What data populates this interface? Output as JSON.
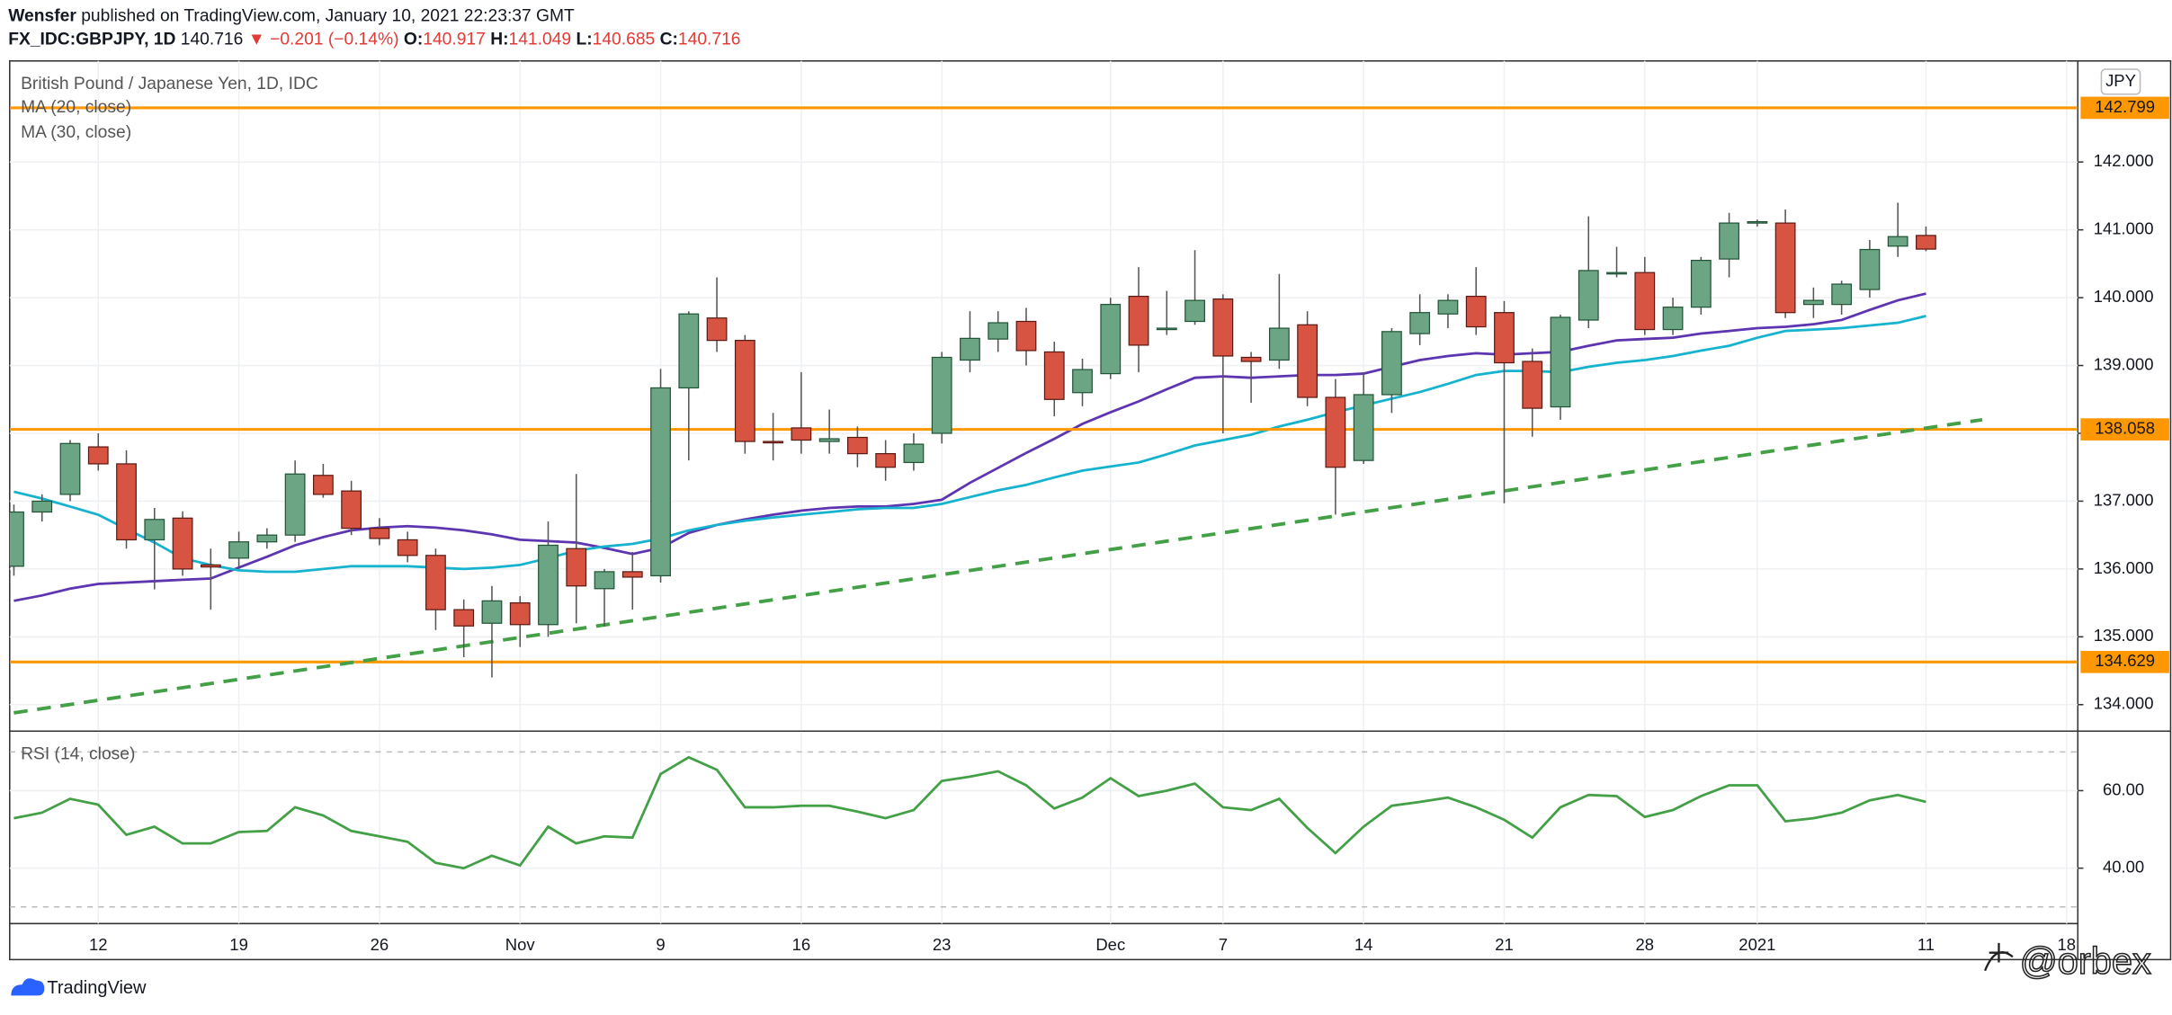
{
  "header": {
    "author": "Wensfer",
    "published": "published on TradingView.com, January 10, 2021 22:23:37 GMT",
    "symbol": "FX_IDC:GBPJPY, 1D",
    "last": "140.716",
    "change": "▼ −0.201 (−0.14%)",
    "ohlc": [
      {
        "label": "O:",
        "value": "140.917"
      },
      {
        "label": "H:",
        "value": "141.049"
      },
      {
        "label": "L:",
        "value": "140.685"
      },
      {
        "label": "C:",
        "value": "140.716"
      }
    ]
  },
  "chart_data": [
    {
      "type": "candlestick",
      "title": "British Pound / Japanese Yen, 1D, IDC",
      "currency": "JPY",
      "up_color": "#6ba583",
      "down_color": "#d75442",
      "xlim": [
        -0.15,
        73.4
      ],
      "xticks": [
        {
          "value": 3,
          "label": "12"
        },
        {
          "value": 8,
          "label": "19"
        },
        {
          "value": 13,
          "label": "26"
        },
        {
          "value": 18,
          "label": "Nov"
        },
        {
          "value": 23,
          "label": "9"
        },
        {
          "value": 28,
          "label": "16"
        },
        {
          "value": 33,
          "label": "23"
        },
        {
          "value": 39,
          "label": "Dec"
        },
        {
          "value": 43,
          "label": "7"
        },
        {
          "value": 48,
          "label": "14"
        },
        {
          "value": 53,
          "label": "21"
        },
        {
          "value": 58,
          "label": "28"
        },
        {
          "value": 62,
          "label": "2021"
        },
        {
          "value": 68,
          "label": "11"
        },
        {
          "value": 73,
          "label": "18"
        }
      ],
      "ylim": [
        133.63,
        143.49
      ],
      "yticks": [
        {
          "value": 134,
          "label": "134.000"
        },
        {
          "value": 135,
          "label": "135.000"
        },
        {
          "value": 136,
          "label": "136.000"
        },
        {
          "value": 137,
          "label": "137.000"
        },
        {
          "value": 138,
          "label": "138.000"
        },
        {
          "value": 139,
          "label": "139.000"
        },
        {
          "value": 140,
          "label": "140.000"
        },
        {
          "value": 141,
          "label": "141.000"
        },
        {
          "value": 142,
          "label": "142.000"
        }
      ],
      "grid": true,
      "open": [
        136.04,
        136.84,
        137.1,
        137.8,
        137.55,
        136.43,
        136.75,
        136.06,
        136.16,
        136.4,
        136.5,
        137.38,
        137.15,
        136.6,
        136.43,
        136.2,
        135.4,
        135.2,
        135.5,
        135.18,
        136.3,
        135.71,
        135.96,
        135.9,
        138.67,
        139.7,
        139.37,
        137.88,
        138.08,
        137.88,
        137.94,
        137.7,
        137.57,
        138.0,
        139.08,
        139.39,
        139.65,
        139.2,
        138.6,
        138.88,
        140.02,
        139.55,
        139.65,
        139.98,
        139.12,
        139.08,
        139.6,
        138.53,
        137.6,
        138.57,
        139.47,
        139.76,
        140.02,
        139.78,
        139.06,
        138.39,
        139.67,
        140.37,
        140.37,
        139.53,
        139.86,
        140.57,
        141.1,
        141.1,
        139.9,
        139.9,
        140.12,
        140.76,
        140.917
      ],
      "high": [
        136.95,
        137.1,
        137.9,
        138.0,
        137.75,
        136.9,
        136.85,
        136.3,
        136.55,
        136.6,
        137.6,
        137.55,
        137.3,
        136.75,
        136.55,
        136.3,
        135.55,
        135.75,
        135.6,
        136.7,
        137.4,
        136.0,
        136.25,
        138.95,
        139.8,
        140.3,
        139.45,
        138.3,
        138.9,
        138.35,
        138.1,
        137.9,
        138.0,
        139.2,
        139.8,
        139.8,
        139.85,
        139.35,
        139.1,
        140.0,
        140.45,
        140.1,
        140.7,
        140.05,
        139.2,
        140.35,
        139.8,
        138.8,
        138.9,
        139.55,
        140.05,
        140.05,
        140.45,
        139.95,
        139.25,
        139.75,
        141.2,
        140.75,
        140.6,
        140.0,
        140.6,
        141.25,
        141.15,
        141.3,
        140.15,
        140.25,
        140.85,
        141.4,
        141.049
      ],
      "low": [
        135.9,
        136.7,
        137.0,
        137.45,
        136.3,
        135.7,
        135.9,
        135.4,
        136.0,
        136.3,
        136.4,
        137.05,
        136.5,
        136.35,
        136.1,
        135.1,
        134.7,
        134.4,
        134.85,
        135.0,
        135.2,
        135.15,
        135.4,
        135.8,
        137.6,
        139.2,
        137.7,
        137.6,
        137.7,
        137.7,
        137.5,
        137.3,
        137.45,
        137.85,
        138.9,
        139.2,
        139.0,
        138.25,
        138.4,
        138.8,
        138.9,
        139.45,
        139.6,
        138.0,
        138.45,
        138.95,
        138.4,
        136.8,
        137.55,
        138.3,
        139.3,
        139.55,
        139.45,
        136.97,
        137.95,
        138.2,
        139.55,
        140.3,
        139.45,
        139.45,
        139.75,
        140.3,
        141.05,
        139.7,
        139.7,
        139.75,
        140.0,
        140.6,
        140.685
      ],
      "close": [
        136.84,
        137.0,
        137.85,
        137.55,
        136.43,
        136.73,
        136.0,
        136.03,
        136.4,
        136.5,
        137.4,
        137.1,
        136.6,
        136.45,
        136.2,
        135.4,
        135.16,
        135.53,
        135.18,
        136.35,
        135.75,
        135.96,
        135.88,
        138.67,
        139.76,
        139.37,
        137.88,
        137.86,
        137.9,
        137.92,
        137.7,
        137.5,
        137.84,
        139.12,
        139.4,
        139.63,
        139.22,
        138.5,
        138.94,
        139.9,
        139.3,
        139.55,
        139.96,
        139.14,
        139.06,
        139.55,
        138.53,
        137.5,
        138.57,
        139.5,
        139.78,
        139.96,
        139.57,
        139.04,
        138.37,
        139.71,
        140.4,
        140.37,
        139.53,
        139.86,
        140.55,
        141.1,
        141.12,
        139.78,
        139.96,
        140.2,
        140.71,
        140.9,
        140.716
      ],
      "series": [
        {
          "name": "MA (20, close)",
          "color": "#5e35b1",
          "values": [
            135.53,
            135.61,
            135.71,
            135.78,
            135.8,
            135.82,
            135.84,
            135.86,
            136.02,
            136.18,
            136.35,
            136.47,
            136.57,
            136.61,
            136.63,
            136.61,
            136.57,
            136.51,
            136.43,
            136.41,
            136.39,
            136.31,
            136.22,
            136.31,
            136.53,
            136.65,
            136.73,
            136.8,
            136.86,
            136.9,
            136.92,
            136.92,
            136.96,
            137.02,
            137.27,
            137.49,
            137.71,
            137.92,
            138.14,
            138.31,
            138.47,
            138.65,
            138.82,
            138.84,
            138.82,
            138.84,
            138.86,
            138.86,
            138.88,
            138.98,
            139.08,
            139.14,
            139.18,
            139.16,
            139.18,
            139.2,
            139.29,
            139.37,
            139.39,
            139.41,
            139.47,
            139.51,
            139.55,
            139.57,
            139.61,
            139.67,
            139.82,
            139.96,
            140.06
          ]
        },
        {
          "name": "MA (30, close)",
          "color": "#16b3cf",
          "values": [
            137.14,
            137.04,
            136.92,
            136.8,
            136.59,
            136.39,
            136.16,
            136.06,
            135.98,
            135.96,
            135.96,
            136.0,
            136.04,
            136.04,
            136.04,
            136.02,
            136.0,
            136.02,
            136.06,
            136.16,
            136.27,
            136.33,
            136.37,
            136.45,
            136.57,
            136.65,
            136.71,
            136.76,
            136.8,
            136.84,
            136.88,
            136.9,
            136.9,
            136.96,
            137.06,
            137.16,
            137.24,
            137.35,
            137.45,
            137.51,
            137.57,
            137.69,
            137.82,
            137.9,
            137.98,
            138.1,
            138.2,
            138.31,
            138.41,
            138.51,
            138.61,
            138.73,
            138.86,
            138.92,
            138.92,
            138.9,
            138.98,
            139.04,
            139.08,
            139.14,
            139.22,
            139.29,
            139.41,
            139.51,
            139.53,
            139.55,
            139.59,
            139.63,
            139.73
          ]
        }
      ],
      "levels": [
        142.799,
        138.058,
        134.629
      ],
      "level_color": "#ff9800",
      "trendline": {
        "x": [
          0,
          70
        ],
        "values": [
          133.88,
          138.2
        ],
        "color": "#43a047"
      }
    },
    {
      "type": "line",
      "ylim": [
        25.7,
        75
      ],
      "yticks": [
        {
          "value": 40,
          "label": "40.00"
        },
        {
          "value": 60,
          "label": "60.00"
        }
      ],
      "levels": [
        30,
        70
      ],
      "series": [
        {
          "name": "RSI (14, close)",
          "color": "#43a047",
          "values": [
            52.9,
            54.3,
            57.9,
            56.4,
            48.6,
            50.7,
            46.4,
            46.4,
            49.3,
            49.6,
            55.7,
            53.6,
            49.6,
            48.2,
            46.8,
            41.4,
            40.0,
            43.2,
            40.7,
            50.7,
            46.4,
            48.2,
            47.9,
            64.3,
            68.6,
            65.4,
            55.7,
            55.7,
            56.1,
            56.1,
            54.6,
            52.9,
            55.0,
            62.5,
            63.6,
            65.0,
            61.4,
            55.4,
            58.2,
            63.2,
            58.6,
            60.0,
            61.8,
            55.7,
            55.0,
            57.9,
            50.4,
            43.9,
            50.7,
            56.1,
            57.1,
            58.2,
            55.7,
            52.5,
            47.9,
            55.7,
            58.9,
            58.6,
            53.2,
            55.0,
            58.6,
            61.4,
            61.4,
            52.1,
            52.9,
            54.3,
            57.5,
            58.9,
            57.1
          ]
        }
      ]
    }
  ],
  "footer": {
    "brand": "TradingView",
    "watermark": "@orbex"
  }
}
